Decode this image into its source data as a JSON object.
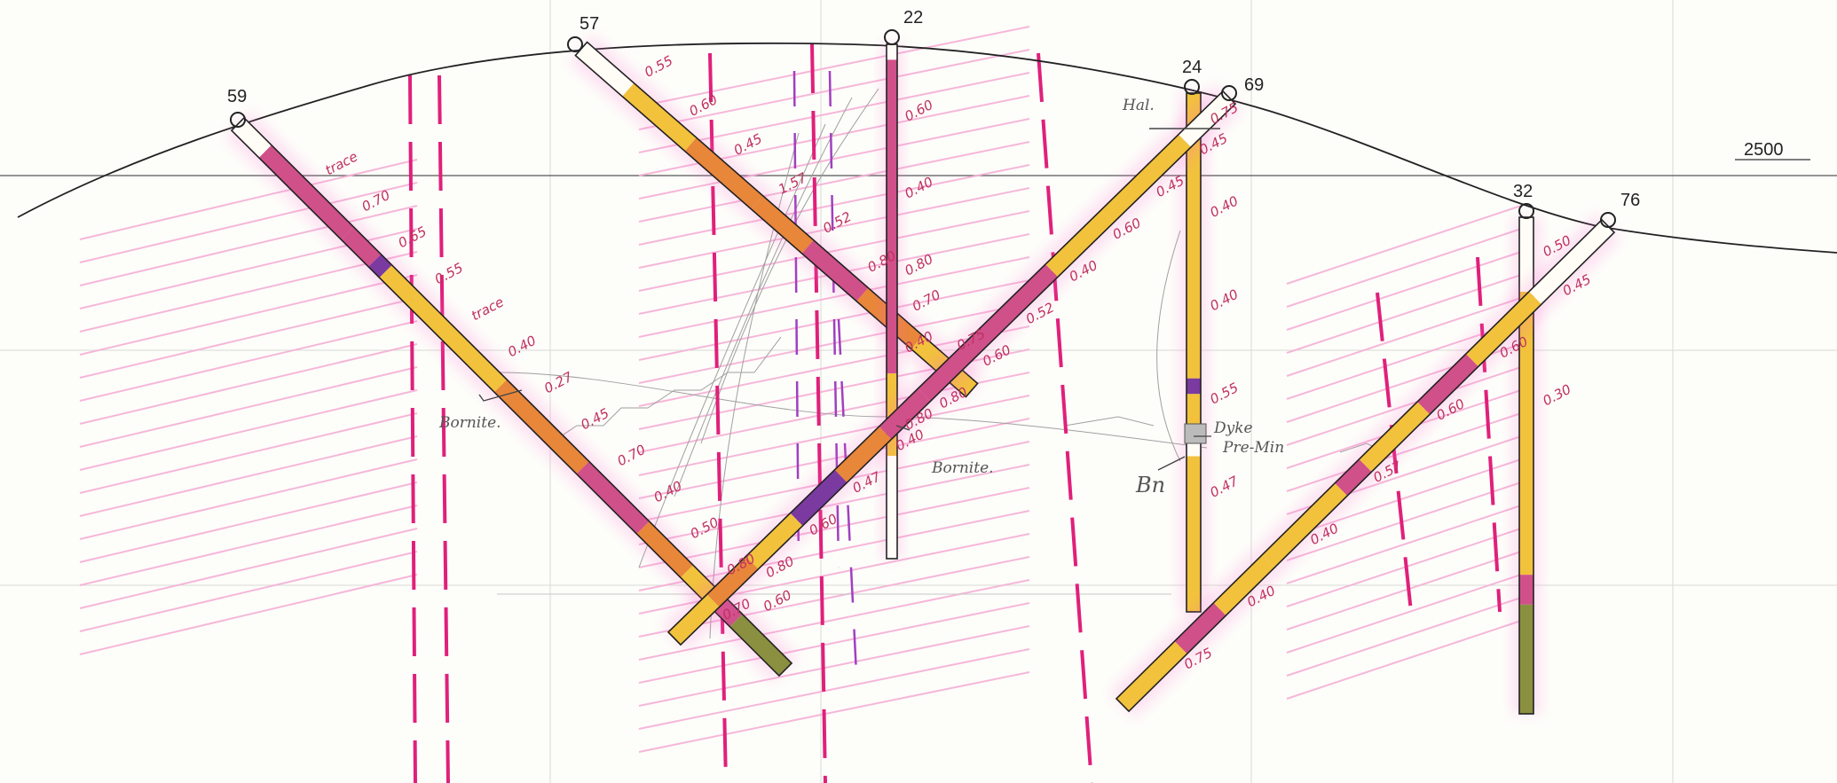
{
  "elevation": {
    "label": "2500"
  },
  "holes": {
    "h59": {
      "id": "59"
    },
    "h57": {
      "id": "57"
    },
    "h22": {
      "id": "22"
    },
    "h24": {
      "id": "24"
    },
    "h69": {
      "id": "69"
    },
    "h32": {
      "id": "32"
    },
    "h76": {
      "id": "76"
    }
  },
  "annotations": {
    "bornite_left": "Bornite.",
    "bornite_center": "Bornite.",
    "hal": "Hal.",
    "dyke": "Dyke",
    "pre_min": "Pre-Min",
    "bn": "Bn"
  },
  "assays": {
    "h59": [
      "trace",
      "0.70",
      "0.65",
      "0.55",
      "trace",
      "0.40",
      "0.27",
      "0.45",
      "0.70",
      "0.40",
      "0.50",
      "0.80",
      "0.60"
    ],
    "h57": [
      "0.55",
      "0.60",
      "0.45",
      "1.57",
      "0.52",
      "0.80",
      "0.70",
      "0.75"
    ],
    "h22": [
      "0.60",
      "0.40",
      "0.80",
      "0.40",
      "0.80"
    ],
    "h24": [
      "0.75",
      "0.40",
      "0.40",
      "0.55",
      "0.47"
    ],
    "h69": [
      "0.45",
      "0.45",
      "0.60",
      "0.40",
      "0.52",
      "0.60",
      "0.80",
      "0.40",
      "0.47",
      "0.60",
      "0.80",
      "0.70"
    ],
    "h32": [
      "0.50",
      "0.30"
    ],
    "h76": [
      "0.45",
      "0.60",
      "0.60",
      "0.57",
      "0.40",
      "0.40",
      "0.75"
    ]
  },
  "legend_colors": {
    "grade_high": "#d0508a",
    "grade_mid": "#e8863a",
    "grade_low": "#f2c23c",
    "barren": "#8a9040",
    "bornite": "#7a3aa0",
    "zone_dash": "#e0207a"
  }
}
